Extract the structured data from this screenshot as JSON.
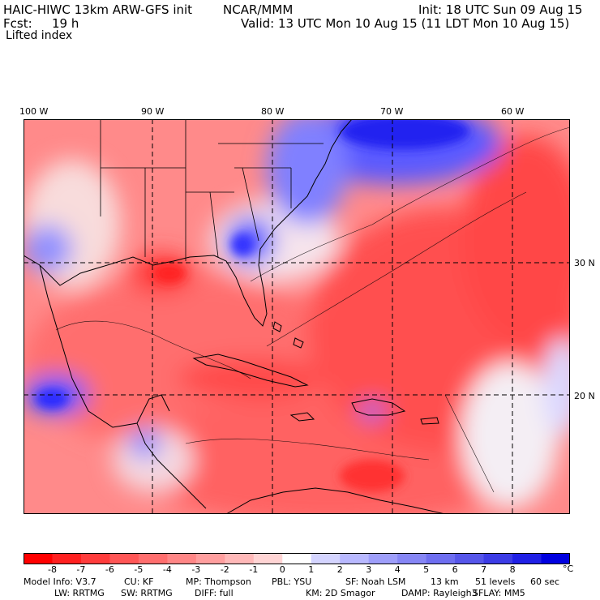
{
  "header": {
    "model_title": "HAIC-HIWC 13km ARW-GFS init",
    "org": "NCAR/MMM",
    "init": "Init: 18 UTC Sun 09 Aug 15",
    "fcst_label": "Fcst:",
    "fcst_value": "19 h",
    "valid": "Valid: 13 UTC Mon 10 Aug 15 (11 LDT Mon 10 Aug 15)",
    "field": "Lifted index"
  },
  "map": {
    "lon_labels": [
      "100 W",
      "90 W",
      "80 W",
      "70 W",
      "60 W"
    ],
    "lat_labels": [
      "30 N",
      "20 N"
    ],
    "lon_values": [
      -100,
      -90,
      -80,
      -70,
      -60
    ],
    "lat_values": [
      30,
      20
    ],
    "grid_lines": "dashed"
  },
  "colorbar": {
    "unit": "°C",
    "tick_labels": [
      "-8",
      "-7",
      "-6",
      "-5",
      "-4",
      "-3",
      "-2",
      "-1",
      "0",
      "1",
      "2",
      "3",
      "4",
      "5",
      "6",
      "7",
      "8"
    ],
    "colors": [
      "#ff0000",
      "#ff2020",
      "#ff3c3c",
      "#ff5656",
      "#ff6e6e",
      "#ff8686",
      "#ff9e9e",
      "#ffb8b8",
      "#ffd4d4",
      "#ffffff",
      "#d4d4ff",
      "#b8b8ff",
      "#9e9efa",
      "#8686f5",
      "#6e6ef0",
      "#5656ea",
      "#3c3ce6",
      "#2020e6",
      "#0000e0"
    ]
  },
  "info": {
    "line1": [
      "Model Info: V3.7",
      "CU: KF",
      "MP: Thompson",
      "PBL: YSU",
      "SF: Noah LSM",
      "13 km",
      "51 levels",
      "60 sec"
    ],
    "line2": [
      "LW: RRTMG",
      "SW: RRTMG",
      "DIFF: full",
      "KM: 2D Smagor",
      "DAMP: Rayleigh3",
      "SFLAY: MM5"
    ]
  }
}
